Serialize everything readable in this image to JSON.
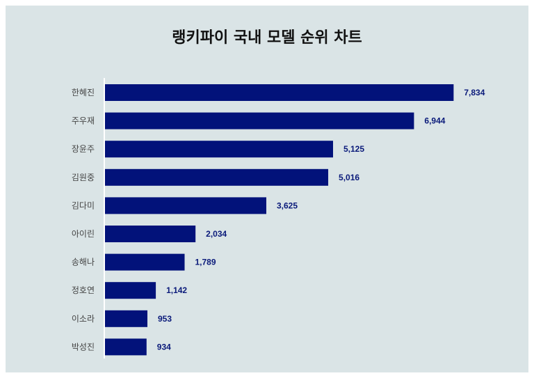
{
  "chart_data": {
    "type": "bar",
    "orientation": "horizontal",
    "title": "랭키파이 국내 모델 순위 차트",
    "xlabel": "",
    "ylabel": "",
    "categories": [
      "한혜진",
      "주우재",
      "장윤주",
      "김원중",
      "김다미",
      "아이린",
      "송해나",
      "정호연",
      "이소라",
      "박성진"
    ],
    "values": [
      7834,
      6944,
      5125,
      5016,
      3625,
      2034,
      1789,
      1142,
      953,
      934
    ],
    "value_labels": [
      "7,834",
      "6,944",
      "5,125",
      "5,016",
      "3,625",
      "2,034",
      "1,789",
      "1,142",
      "953",
      "934"
    ],
    "xlim": [
      0,
      8000
    ],
    "grid": false,
    "legend": "none",
    "colors": {
      "bar": "#02127a",
      "background": "#dae4e6",
      "value_text": "#0a1a7a",
      "axis": "#ffffff"
    }
  }
}
